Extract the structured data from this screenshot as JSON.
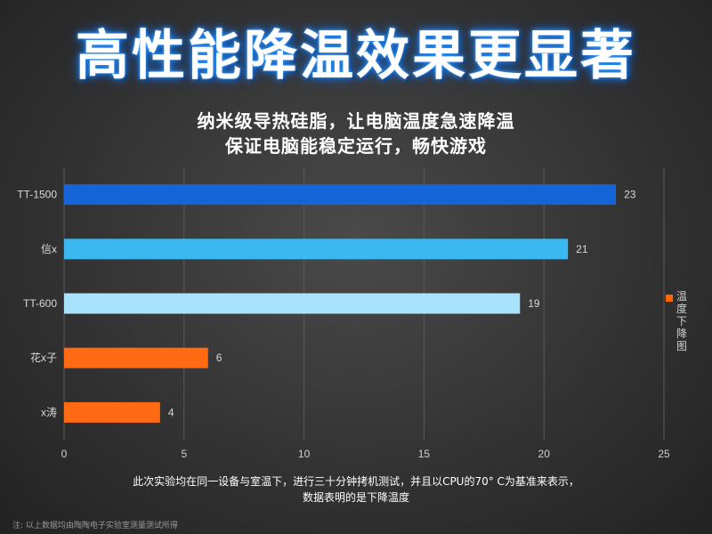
{
  "headline": "高性能降温效果更显著",
  "subtitle_line1": "纳米级导热硅脂，让电脑温度急速降温",
  "subtitle_line2": "保证电脑能稳定运行，畅快游戏",
  "legend_label": "温度下降图",
  "footnote_line1": "此次实验均在同一设备与室温下，进行三十分钟拷机测试，并且以CPU的70° C为基准来表示，",
  "footnote_line2": "数据表明的是下降温度",
  "source_note": "注: 以上数据均由陶陶电子实验室测量测试所得",
  "colors": {
    "TT-1500": "#1565d8",
    "信x": "#3cb8f0",
    "TT-600": "#a9e2fb",
    "花x子": "#ff6a13",
    "x涛": "#ff6a13"
  },
  "chart_data": {
    "type": "bar",
    "orientation": "horizontal",
    "categories": [
      "TT-1500",
      "信x",
      "TT-600",
      "花x子",
      "x涛"
    ],
    "series": [
      {
        "name": "温度下降图",
        "values": [
          23,
          21,
          19,
          6,
          4
        ]
      }
    ],
    "xlim": [
      0,
      25
    ],
    "xticks": [
      0,
      5,
      10,
      15,
      20,
      25
    ],
    "grid": true,
    "legend": "right"
  }
}
